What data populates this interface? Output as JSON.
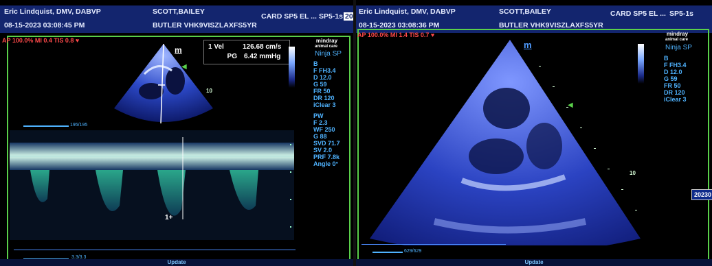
{
  "left": {
    "physician": "Eric Lindquist, DMV, DABVP",
    "patient_name": "SCOTT,BAILEY",
    "study": "CARD SP5 EL ...",
    "probe_tag": "SP5-1s",
    "id_tag": "202",
    "datetime": "08-15-2023  03:08:45 PM",
    "patient_id": "BUTLER VHK9VISZLAXFS5YR",
    "acoustic": "AP 100.0%  MI 0.4  TIS 0.8",
    "marker": "m",
    "brand": "mindray",
    "brand_sub": "animal care",
    "model": "Ninja SP",
    "bmode_params": [
      "B",
      "F FH3.4",
      "D 12.0",
      "G 59",
      "FR 50",
      "DR 120",
      "iClear 3"
    ],
    "pw_params": [
      "PW",
      "F 2.3",
      "WF 250",
      "G 88",
      "SVD 71.7",
      "SV 2.0",
      "PRF 7.8k",
      "Angle 0°"
    ],
    "readout": {
      "row1_label": "1 Vel",
      "row1_value": "126.68 cm/s",
      "row2_label": "PG",
      "row2_value": "6.42 mmHg"
    },
    "depth_label": "10",
    "cine_top": "195/195",
    "cine_bottom": "3.3/3.3",
    "cursor_label": "1",
    "footer": "Update"
  },
  "right": {
    "physician": "Eric Lindquist, DMV, DABVP",
    "patient_name": "SCOTT,BAILEY",
    "study": "CARD SP5 EL ...",
    "probe_tag": "SP5-1s",
    "datetime": "08-15-2023  03:08:36 PM",
    "patient_id": "BUTLER VHK9VISZLAXFS5YR",
    "acoustic": "AP 100.0%  MI 1.4  TIS 0.7",
    "marker": "m",
    "brand": "mindray",
    "brand_sub": "animal care",
    "model": "Ninja SP",
    "bmode_params": [
      "B",
      "F FH3.4",
      "D 12.0",
      "G 59",
      "FR 50",
      "DR 120",
      "iClear 3"
    ],
    "depth_label": "10",
    "cine": "629/629",
    "side_tag": "20230",
    "footer": "Update"
  },
  "colors": {
    "header_bg": "#13256e",
    "frame": "#5ad04a",
    "param_text": "#4fb3ff",
    "alert_text": "#ff4a4a"
  }
}
